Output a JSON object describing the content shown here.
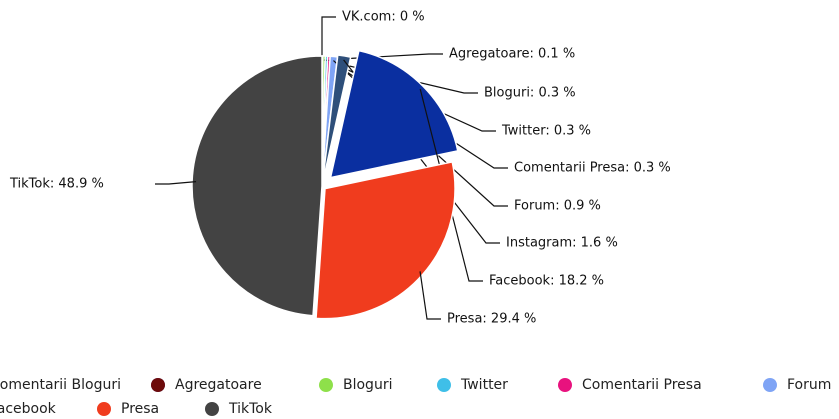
{
  "chart_data": {
    "type": "pie",
    "categories": [
      "VK.com",
      "Agregatoare",
      "Bloguri",
      "Twitter",
      "Comentarii Presa",
      "Forum",
      "Instagram",
      "Facebook",
      "Presa",
      "TikTok"
    ],
    "values": [
      0,
      0.1,
      0.3,
      0.3,
      0.3,
      0.9,
      1.6,
      18.2,
      29.4,
      48.9
    ],
    "value_labels": [
      "VK.com: 0 %",
      "Agregatoare: 0.1 %",
      "Bloguri: 0.3 %",
      "Twitter: 0.3 %",
      "Comentarii Presa: 0.3 %",
      "Forum: 0.9 %",
      "Instagram: 1.6 %",
      "Facebook: 18.2 %",
      "Presa: 29.4 %",
      "TikTok: 48.9 %"
    ],
    "colors": [
      "#2b2b9a",
      "#6d0b0b",
      "#8ee04a",
      "#3fbfe8",
      "#e8127e",
      "#7fa4f5",
      "#2e4f7a",
      "#0a2fa0",
      "#f03c1e",
      "#434343"
    ],
    "legend": [
      {
        "name": "Comentarii Bloguri",
        "color": "#6b6bd0"
      },
      {
        "name": "Agregatoare",
        "color": "#6d0b0b"
      },
      {
        "name": "Bloguri",
        "color": "#8ee04a"
      },
      {
        "name": "Twitter",
        "color": "#3fbfe8"
      },
      {
        "name": "Comentarii Presa",
        "color": "#e8127e"
      },
      {
        "name": "Forum",
        "color": "#7fa4f5"
      },
      {
        "name": "Facebook",
        "color": "#0a2fa0"
      },
      {
        "name": "Presa",
        "color": "#f03c1e"
      },
      {
        "name": "TikTok",
        "color": "#434343"
      }
    ]
  }
}
